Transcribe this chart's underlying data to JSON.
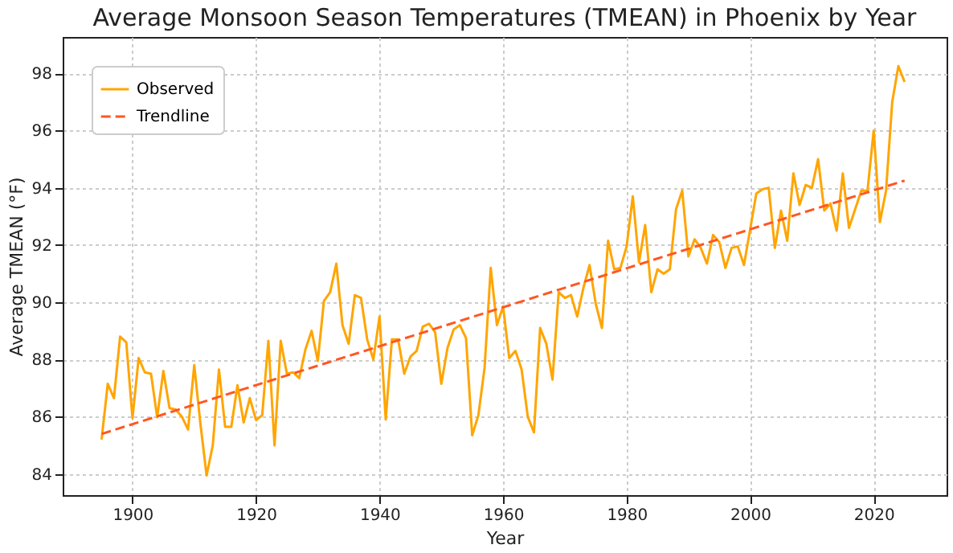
{
  "chart_data": {
    "type": "line",
    "title": "Average Monsoon Season Temperatures (TMEAN) in Phoenix by Year",
    "xlabel": "Year",
    "ylabel": "Average TMEAN (°F)",
    "x": [
      1895,
      1896,
      1897,
      1898,
      1899,
      1900,
      1901,
      1902,
      1903,
      1904,
      1905,
      1906,
      1907,
      1908,
      1909,
      1910,
      1911,
      1912,
      1913,
      1914,
      1915,
      1916,
      1917,
      1918,
      1919,
      1920,
      1921,
      1922,
      1923,
      1924,
      1925,
      1926,
      1927,
      1928,
      1929,
      1930,
      1931,
      1932,
      1933,
      1934,
      1935,
      1936,
      1937,
      1938,
      1939,
      1940,
      1941,
      1942,
      1943,
      1944,
      1945,
      1946,
      1947,
      1948,
      1949,
      1950,
      1951,
      1952,
      1953,
      1954,
      1955,
      1956,
      1957,
      1958,
      1959,
      1960,
      1961,
      1962,
      1963,
      1964,
      1965,
      1966,
      1967,
      1968,
      1969,
      1970,
      1971,
      1972,
      1973,
      1974,
      1975,
      1976,
      1977,
      1978,
      1979,
      1980,
      1981,
      1982,
      1983,
      1984,
      1985,
      1986,
      1987,
      1988,
      1989,
      1990,
      1991,
      1992,
      1993,
      1994,
      1995,
      1996,
      1997,
      1998,
      1999,
      2000,
      2001,
      2002,
      2003,
      2004,
      2005,
      2006,
      2007,
      2008,
      2009,
      2010,
      2011,
      2012,
      2013,
      2014,
      2015,
      2016,
      2017,
      2018,
      2019,
      2020,
      2021,
      2022,
      2023,
      2024,
      2025
    ],
    "series": [
      {
        "name": "Observed",
        "color": "#ffa500",
        "line_style": "solid",
        "values": [
          85.2,
          87.15,
          86.65,
          88.8,
          88.6,
          85.95,
          88.05,
          87.55,
          87.5,
          85.98,
          87.6,
          86.3,
          86.25,
          86.0,
          85.55,
          87.8,
          85.75,
          83.95,
          85.0,
          87.65,
          85.65,
          85.65,
          87.1,
          85.8,
          86.65,
          85.88,
          86.05,
          88.65,
          85.0,
          88.65,
          87.5,
          87.55,
          87.35,
          88.35,
          89.0,
          87.95,
          90.05,
          90.35,
          91.35,
          89.2,
          88.55,
          90.25,
          90.15,
          88.7,
          88.0,
          89.5,
          85.9,
          88.7,
          88.7,
          87.5,
          88.1,
          88.3,
          89.15,
          89.25,
          88.95,
          87.15,
          88.4,
          89.05,
          89.2,
          88.75,
          85.35,
          86.05,
          87.7,
          91.2,
          89.2,
          89.85,
          88.05,
          88.3,
          87.65,
          86.0,
          85.45,
          89.1,
          88.55,
          87.3,
          90.35,
          90.15,
          90.25,
          89.5,
          90.5,
          91.3,
          89.95,
          89.1,
          92.15,
          91.15,
          91.2,
          91.95,
          93.7,
          91.4,
          92.7,
          90.35,
          91.15,
          91.0,
          91.15,
          93.25,
          93.9,
          91.6,
          92.2,
          91.9,
          91.35,
          92.35,
          92.1,
          91.2,
          91.9,
          91.95,
          91.3,
          92.55,
          93.8,
          93.95,
          94.0,
          91.9,
          93.2,
          92.15,
          94.5,
          93.4,
          94.1,
          94.0,
          95.0,
          93.2,
          93.45,
          92.5,
          94.5,
          92.6,
          93.25,
          93.9,
          93.9,
          96.0,
          92.8,
          93.9,
          97.0,
          98.25,
          97.7
        ]
      },
      {
        "name": "Trendline",
        "color": "#ff5722",
        "line_style": "dashed",
        "x": [
          1895,
          2025
        ],
        "values": [
          85.4,
          94.25
        ]
      }
    ],
    "xlim": [
      1888.7,
      2031.8
    ],
    "xticks": [
      1900,
      1920,
      1940,
      1960,
      1980,
      2000,
      2020
    ],
    "ylim": [
      83.26,
      99.27
    ],
    "yticks": [
      84,
      86,
      88,
      90,
      92,
      94,
      96,
      98
    ],
    "grid": true,
    "legend": "top left",
    "marker": "none"
  }
}
